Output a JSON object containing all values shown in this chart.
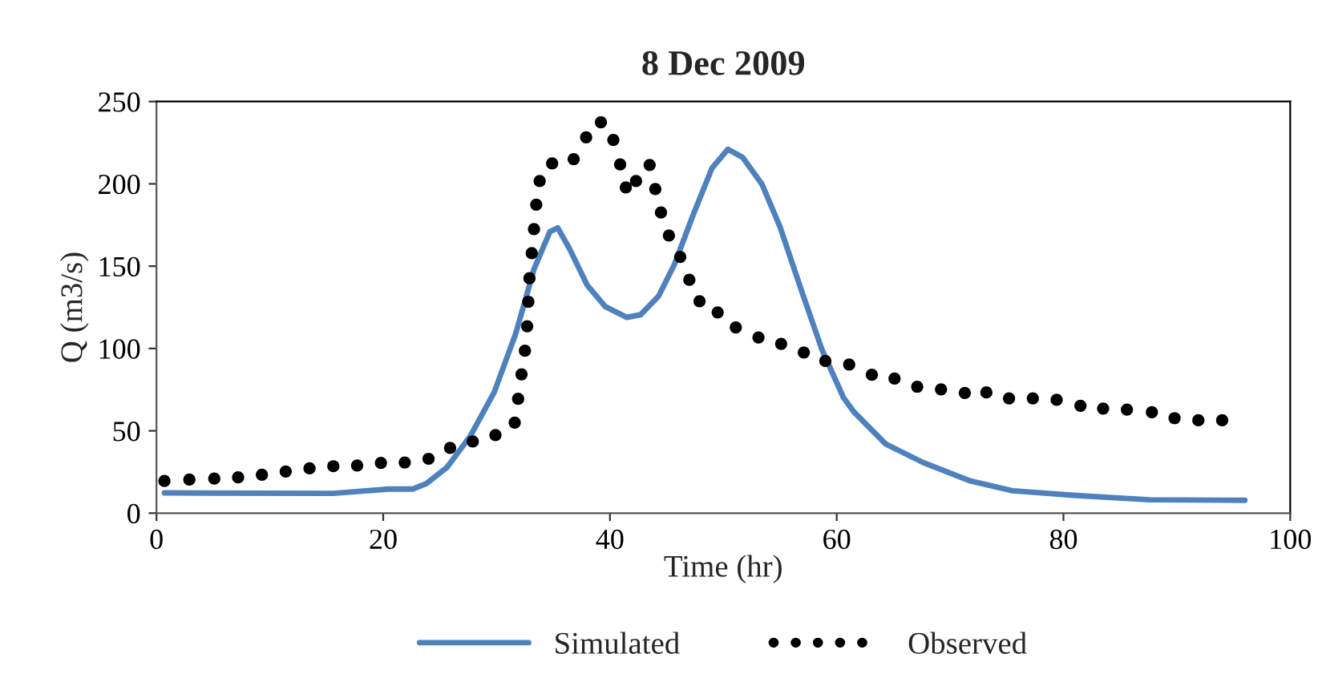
{
  "chart_data": {
    "type": "line",
    "title": "8 Dec 2009",
    "xlabel": "Time (hr)",
    "ylabel": "Q (m3/s)",
    "xlim": [
      0,
      100
    ],
    "xticks": [
      0,
      20,
      40,
      60,
      80,
      100
    ],
    "ylim": [
      0,
      250
    ],
    "yticks": [
      0,
      50,
      100,
      150,
      200,
      250
    ],
    "grid": false,
    "legend": "bottom",
    "series": [
      {
        "name": "Simulated",
        "color": "#4f81bd",
        "line_style": "solid",
        "marker": "none",
        "x": [
          0.7,
          15.6,
          20.5,
          22.6,
          23.8,
          25.6,
          27.7,
          29.8,
          31.7,
          33.3,
          34.7,
          35.4,
          36.4,
          38,
          39.6,
          41.5,
          42.7,
          44.3,
          45.7,
          47.3,
          49,
          50.4,
          51.7,
          53.4,
          55,
          56.9,
          58.7,
          60.6,
          61.5,
          64.3,
          67.6,
          71.8,
          75.5,
          81.1,
          87.6,
          96.0
        ],
        "values": [
          12.3,
          12,
          14.6,
          14.6,
          17.9,
          27.6,
          47,
          73.6,
          109.3,
          148.2,
          170.9,
          173.2,
          161,
          138.4,
          125.4,
          118.9,
          120.5,
          131.9,
          151.3,
          180.5,
          209.6,
          221,
          216.1,
          199.9,
          173.9,
          135,
          99.3,
          70.1,
          61.6,
          42.1,
          30.8,
          19.5,
          13.6,
          10.7,
          8.1,
          7.8
        ]
      },
      {
        "name": "Observed",
        "color": "#000000",
        "line_style": "dotted",
        "marker": "circle",
        "type": "scatter",
        "x": [
          0.7,
          2.9,
          5.1,
          7.2,
          9.3,
          11.4,
          13.5,
          15.6,
          17.7,
          19.8,
          21.9,
          24.0,
          25.9,
          27.9,
          29.9,
          31.6,
          31.9,
          32.2,
          32.5,
          32.7,
          32.8,
          32.9,
          33.1,
          33.3,
          33.5,
          33.8,
          34.9,
          36.8,
          37.9,
          39.2,
          40.3,
          40.9,
          41.4,
          42.3,
          43.5,
          44.0,
          44.5,
          45.2,
          46.2,
          47.0,
          47.9,
          49.5,
          51.1,
          53.1,
          55.1,
          57.1,
          59.0,
          61.1,
          63.1,
          65.1,
          67.1,
          69.2,
          71.3,
          73.2,
          75.2,
          77.3,
          79.4,
          81.5,
          83.5,
          85.6,
          87.8,
          89.8,
          91.9,
          94.0
        ],
        "values": [
          19.5,
          20.4,
          21,
          21.7,
          23.3,
          25.3,
          27.2,
          28.5,
          28.9,
          30.5,
          30.8,
          33,
          39.6,
          43.5,
          47.4,
          55,
          69.4,
          84.3,
          98.6,
          113.5,
          128.4,
          142.7,
          157.9,
          172.5,
          187.4,
          201.7,
          212.4,
          215,
          228.3,
          237.4,
          226.7,
          211.8,
          197.8,
          201.7,
          211.5,
          196.8,
          182.6,
          168.6,
          155.6,
          141.7,
          128.7,
          121.9,
          112.8,
          106.7,
          102.8,
          97.6,
          92.4,
          90.2,
          84,
          81.7,
          76.8,
          75.2,
          73,
          73.3,
          69.7,
          69.7,
          68.8,
          65.2,
          63.5,
          62.9,
          61.3,
          57.7,
          56.4,
          56.4
        ]
      }
    ]
  }
}
